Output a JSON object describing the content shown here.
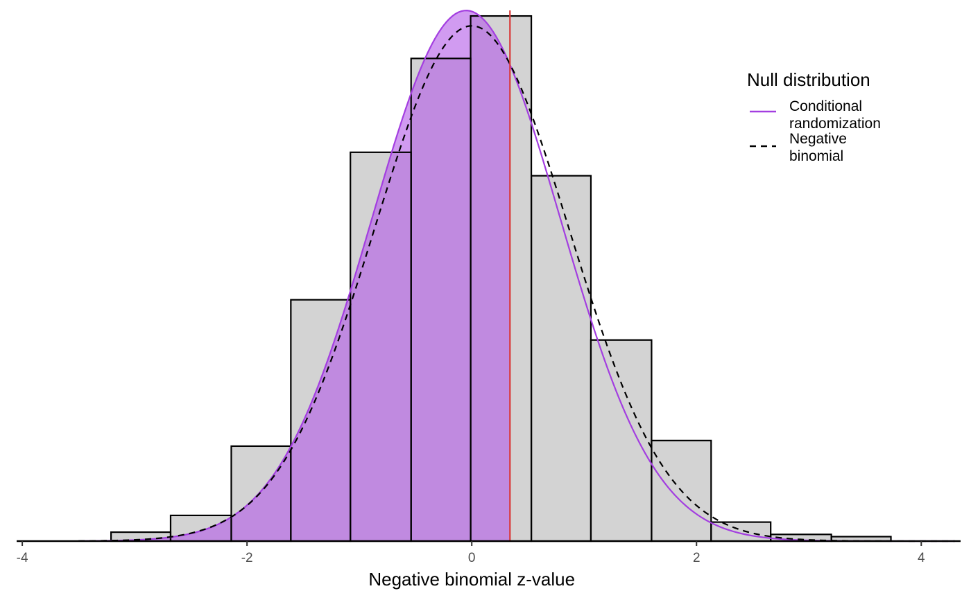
{
  "chart_data": {
    "type": "histogram",
    "title": "",
    "xlabel": "Negative binomial z-value",
    "ylabel": "",
    "xlim": [
      -4.05,
      4.35
    ],
    "xticks": [
      -4,
      -2,
      0,
      2,
      4
    ],
    "tick_labels": [
      "-4",
      "-2",
      "0",
      "2",
      "4"
    ],
    "bins": [
      {
        "x0": -3.21,
        "x1": -2.68,
        "density": 0.008
      },
      {
        "x0": -2.68,
        "x1": -2.14,
        "density": 0.023
      },
      {
        "x0": -2.14,
        "x1": -1.61,
        "density": 0.085
      },
      {
        "x0": -1.61,
        "x1": -1.08,
        "density": 0.216
      },
      {
        "x0": -1.08,
        "x1": -0.54,
        "density": 0.348
      },
      {
        "x0": -0.54,
        "x1": -0.01,
        "density": 0.432
      },
      {
        "x0": -0.01,
        "x1": 0.53,
        "density": 0.47
      },
      {
        "x0": 0.53,
        "x1": 1.06,
        "density": 0.327
      },
      {
        "x0": 1.06,
        "x1": 1.6,
        "density": 0.18
      },
      {
        "x0": 1.6,
        "x1": 2.13,
        "density": 0.09
      },
      {
        "x0": 2.13,
        "x1": 2.66,
        "density": 0.017
      },
      {
        "x0": 2.66,
        "x1": 3.2,
        "density": 0.006
      },
      {
        "x0": 3.2,
        "x1": 3.73,
        "density": 0.004
      }
    ],
    "observed_value": 0.34,
    "series": [
      {
        "name": "Conditional\nrandomization",
        "type": "density",
        "distribution": "normal",
        "mean": -0.05,
        "sd": 0.84,
        "color": "#a33ee0",
        "fill_left_of_observed": "#b45ee8",
        "x_range": [
          -3.5,
          4.3
        ]
      },
      {
        "name": "Negative\nbinomial",
        "type": "density",
        "distribution": "normal",
        "mean": 0.0,
        "sd": 0.865,
        "color": "#000000",
        "dash": true,
        "x_range": [
          -3.5,
          4.3
        ]
      }
    ],
    "colors": {
      "bar_fill": "#d3d3d3",
      "bar_stroke": "#000000",
      "observed_line": "#d93a3a",
      "axis": "#000000"
    },
    "legend": {
      "title": "Null distribution",
      "placement": "top-right",
      "entries": [
        {
          "label_lines": [
            "Conditional",
            "randomization"
          ],
          "style": "solid",
          "color": "#a33ee0"
        },
        {
          "label_lines": [
            "Negative",
            "binomial"
          ],
          "style": "dashed",
          "color": "#000000"
        }
      ]
    }
  }
}
